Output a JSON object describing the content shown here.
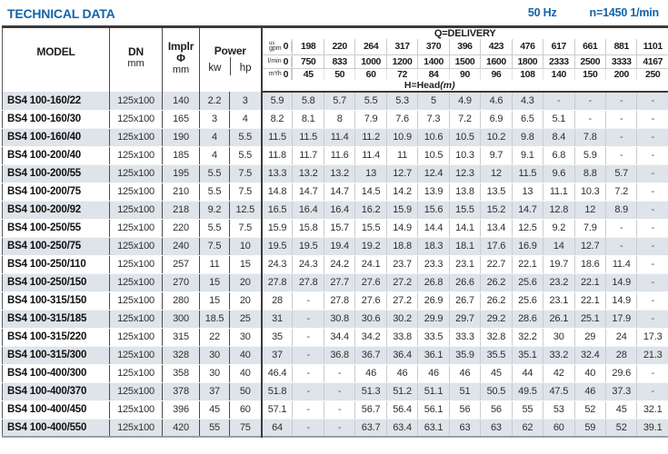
{
  "page": {
    "title": "TECHNICAL DATA",
    "frequency": "50 Hz",
    "speed": "n=1450 1/min"
  },
  "table": {
    "headers": {
      "model": "MODEL",
      "dn": "DN",
      "implr_line1": "Implr",
      "implr_line2": "Φ",
      "power": "Power",
      "mm": "mm",
      "kw": "kw",
      "hp": "hp",
      "delivery": "Q=DELIVERY",
      "head_label": "H=Head",
      "head_unit": "(m)",
      "us": "us",
      "gpm": "gpm",
      "lmin": "l/min",
      "m3h": "m³/h"
    },
    "delivery": {
      "gpm": [
        "0",
        "198",
        "220",
        "264",
        "317",
        "370",
        "396",
        "423",
        "476",
        "617",
        "661",
        "881",
        "1101"
      ],
      "lmin": [
        "0",
        "750",
        "833",
        "1000",
        "1200",
        "1400",
        "1500",
        "1600",
        "1800",
        "2333",
        "2500",
        "3333",
        "4167"
      ],
      "m3h": [
        "0",
        "45",
        "50",
        "60",
        "72",
        "84",
        "90",
        "96",
        "108",
        "140",
        "150",
        "200",
        "250"
      ]
    },
    "rows": [
      {
        "model": "BS4 100-160/22",
        "dn": "125x100",
        "implr": "140",
        "kw": "2.2",
        "hp": "3",
        "head": [
          "5.9",
          "5.8",
          "5.7",
          "5.5",
          "5.3",
          "5",
          "4.9",
          "4.6",
          "4.3",
          "-",
          "-",
          "-",
          "-"
        ]
      },
      {
        "model": "BS4 100-160/30",
        "dn": "125x100",
        "implr": "165",
        "kw": "3",
        "hp": "4",
        "head": [
          "8.2",
          "8.1",
          "8",
          "7.9",
          "7.6",
          "7.3",
          "7.2",
          "6.9",
          "6.5",
          "5.1",
          "-",
          "-",
          "-"
        ]
      },
      {
        "model": "BS4 100-160/40",
        "dn": "125x100",
        "implr": "190",
        "kw": "4",
        "hp": "5.5",
        "head": [
          "11.5",
          "11.5",
          "11.4",
          "11.2",
          "10.9",
          "10.6",
          "10.5",
          "10.2",
          "9.8",
          "8.4",
          "7.8",
          "-",
          "-"
        ]
      },
      {
        "model": "BS4 100-200/40",
        "dn": "125x100",
        "implr": "185",
        "kw": "4",
        "hp": "5.5",
        "head": [
          "11.8",
          "11.7",
          "11.6",
          "11.4",
          "11",
          "10.5",
          "10.3",
          "9.7",
          "9.1",
          "6.8",
          "5.9",
          "-",
          "-"
        ]
      },
      {
        "model": "BS4 100-200/55",
        "dn": "125x100",
        "implr": "195",
        "kw": "5.5",
        "hp": "7.5",
        "head": [
          "13.3",
          "13.2",
          "13.2",
          "13",
          "12.7",
          "12.4",
          "12.3",
          "12",
          "11.5",
          "9.6",
          "8.8",
          "5.7",
          "-"
        ]
      },
      {
        "model": "BS4 100-200/75",
        "dn": "125x100",
        "implr": "210",
        "kw": "5.5",
        "hp": "7.5",
        "head": [
          "14.8",
          "14.7",
          "14.7",
          "14.5",
          "14.2",
          "13.9",
          "13.8",
          "13.5",
          "13",
          "11.1",
          "10.3",
          "7.2",
          "-"
        ]
      },
      {
        "model": "BS4 100-200/92",
        "dn": "125x100",
        "implr": "218",
        "kw": "9.2",
        "hp": "12.5",
        "head": [
          "16.5",
          "16.4",
          "16.4",
          "16.2",
          "15.9",
          "15.6",
          "15.5",
          "15.2",
          "14.7",
          "12.8",
          "12",
          "8.9",
          "-"
        ]
      },
      {
        "model": "BS4 100-250/55",
        "dn": "125x100",
        "implr": "220",
        "kw": "5.5",
        "hp": "7.5",
        "head": [
          "15.9",
          "15.8",
          "15.7",
          "15.5",
          "14.9",
          "14.4",
          "14.1",
          "13.4",
          "12.5",
          "9.2",
          "7.9",
          "-",
          "-"
        ]
      },
      {
        "model": "BS4 100-250/75",
        "dn": "125x100",
        "implr": "240",
        "kw": "7.5",
        "hp": "10",
        "head": [
          "19.5",
          "19.5",
          "19.4",
          "19.2",
          "18.8",
          "18.3",
          "18.1",
          "17.6",
          "16.9",
          "14",
          "12.7",
          "-",
          "-"
        ]
      },
      {
        "model": "BS4 100-250/110",
        "dn": "125x100",
        "implr": "257",
        "kw": "11",
        "hp": "15",
        "head": [
          "24.3",
          "24.3",
          "24.2",
          "24.1",
          "23.7",
          "23.3",
          "23.1",
          "22.7",
          "22.1",
          "19.7",
          "18.6",
          "11.4",
          "-"
        ]
      },
      {
        "model": "BS4 100-250/150",
        "dn": "125x100",
        "implr": "270",
        "kw": "15",
        "hp": "20",
        "head": [
          "27.8",
          "27.8",
          "27.7",
          "27.6",
          "27.2",
          "26.8",
          "26.6",
          "26.2",
          "25.6",
          "23.2",
          "22.1",
          "14.9",
          "-"
        ]
      },
      {
        "model": "BS4 100-315/150",
        "dn": "125x100",
        "implr": "280",
        "kw": "15",
        "hp": "20",
        "head": [
          "28",
          "-",
          "27.8",
          "27.6",
          "27.2",
          "26.9",
          "26.7",
          "26.2",
          "25.6",
          "23.1",
          "22.1",
          "14.9",
          "-"
        ]
      },
      {
        "model": "BS4 100-315/185",
        "dn": "125x100",
        "implr": "300",
        "kw": "18.5",
        "hp": "25",
        "head": [
          "31",
          "-",
          "30.8",
          "30.6",
          "30.2",
          "29.9",
          "29.7",
          "29.2",
          "28.6",
          "26.1",
          "25.1",
          "17.9",
          "-"
        ]
      },
      {
        "model": "BS4 100-315/220",
        "dn": "125x100",
        "implr": "315",
        "kw": "22",
        "hp": "30",
        "head": [
          "35",
          "-",
          "34.4",
          "34.2",
          "33.8",
          "33.5",
          "33.3",
          "32.8",
          "32.2",
          "30",
          "29",
          "24",
          "17.3"
        ]
      },
      {
        "model": "BS4 100-315/300",
        "dn": "125x100",
        "implr": "328",
        "kw": "30",
        "hp": "40",
        "head": [
          "37",
          "-",
          "36.8",
          "36.7",
          "36.4",
          "36.1",
          "35.9",
          "35.5",
          "35.1",
          "33.2",
          "32.4",
          "28",
          "21.3"
        ]
      },
      {
        "model": "BS4 100-400/300",
        "dn": "125x100",
        "implr": "358",
        "kw": "30",
        "hp": "40",
        "head": [
          "46.4",
          "-",
          "-",
          "46",
          "46",
          "46",
          "46",
          "45",
          "44",
          "42",
          "40",
          "29.6",
          "-"
        ]
      },
      {
        "model": "BS4 100-400/370",
        "dn": "125x100",
        "implr": "378",
        "kw": "37",
        "hp": "50",
        "head": [
          "51.8",
          "-",
          "-",
          "51.3",
          "51.2",
          "51.1",
          "51",
          "50.5",
          "49.5",
          "47.5",
          "46",
          "37.3",
          "-"
        ]
      },
      {
        "model": "BS4 100-400/450",
        "dn": "125x100",
        "implr": "396",
        "kw": "45",
        "hp": "60",
        "head": [
          "57.1",
          "-",
          "-",
          "56.7",
          "56.4",
          "56.1",
          "56",
          "56",
          "55",
          "53",
          "52",
          "45",
          "32.1"
        ]
      },
      {
        "model": "BS4 100-400/550",
        "dn": "125x100",
        "implr": "420",
        "kw": "55",
        "hp": "75",
        "head": [
          "64",
          "-",
          "-",
          "63.7",
          "63.4",
          "63.1",
          "63",
          "63",
          "62",
          "60",
          "59",
          "52",
          "39.1"
        ]
      }
    ]
  }
}
